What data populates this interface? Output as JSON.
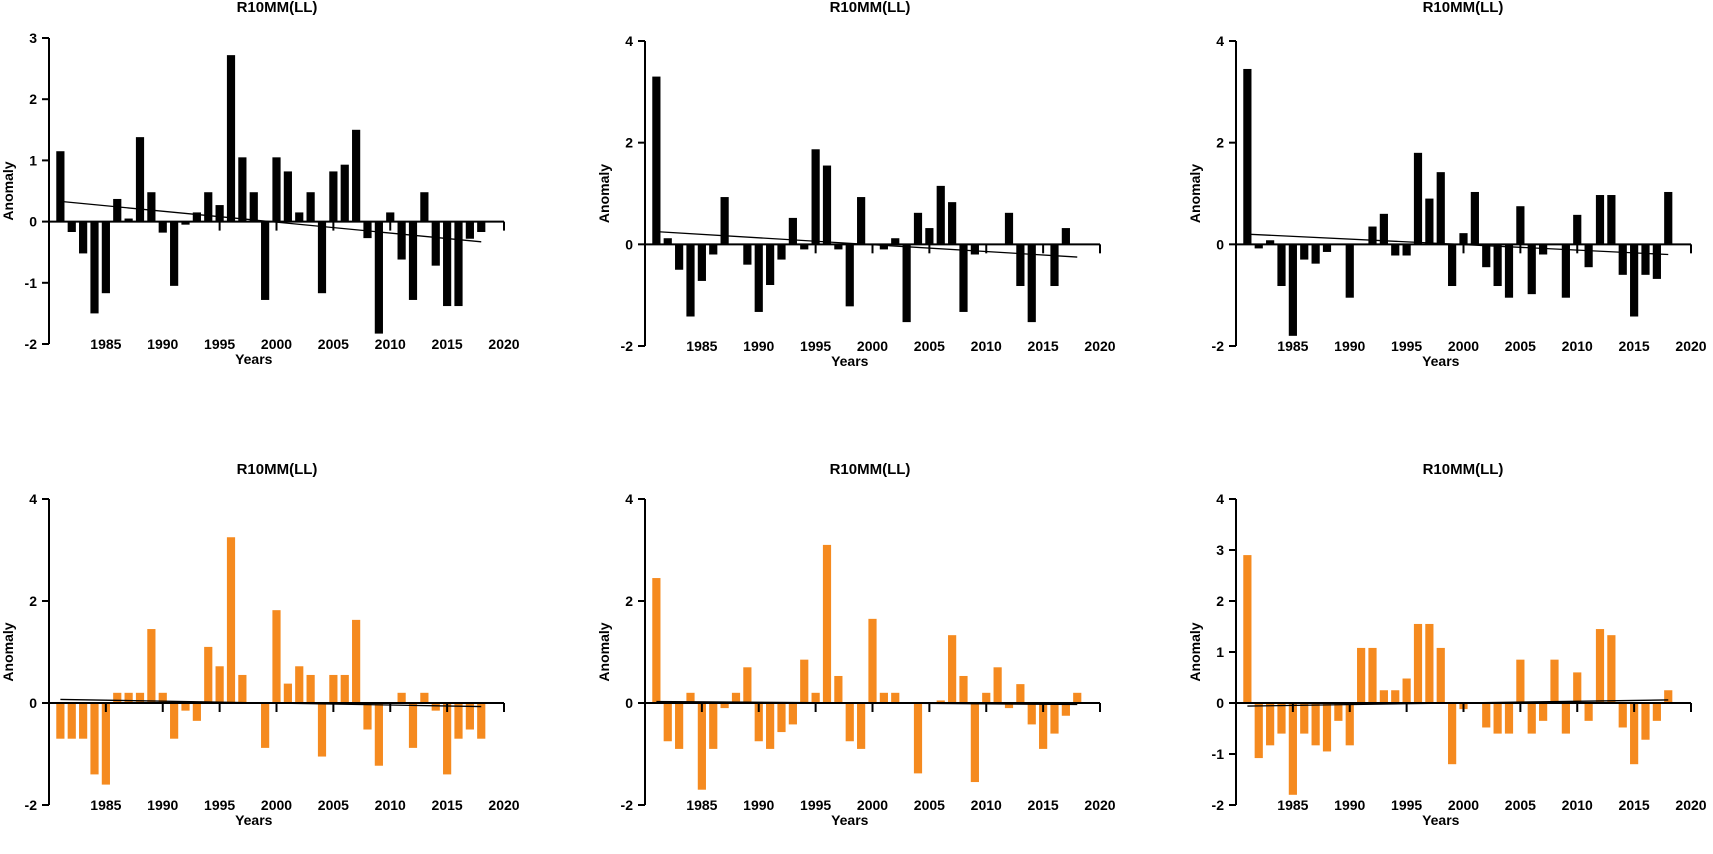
{
  "chart_data": [
    {
      "type": "bar",
      "title": "R10MM(LL)",
      "xlabel": "Years",
      "ylabel": "Anomaly",
      "color": "#000000",
      "ylim": [
        -2,
        3
      ],
      "yticks": [
        -2,
        -1,
        0,
        1,
        2,
        3
      ],
      "xlim": [
        1980,
        2020
      ],
      "xticks": [
        1985,
        1990,
        1995,
        2000,
        2005,
        2010,
        2015,
        2020
      ],
      "x": [
        1981,
        1982,
        1983,
        1984,
        1985,
        1986,
        1987,
        1988,
        1989,
        1990,
        1991,
        1992,
        1993,
        1994,
        1995,
        1996,
        1997,
        1998,
        1999,
        2000,
        2001,
        2002,
        2003,
        2004,
        2005,
        2006,
        2007,
        2008,
        2009,
        2010,
        2011,
        2012,
        2013,
        2014,
        2015,
        2016,
        2017,
        2018
      ],
      "values": [
        1.15,
        -0.17,
        -0.52,
        -1.5,
        -1.17,
        0.37,
        0.05,
        1.38,
        0.48,
        -0.18,
        -1.05,
        -0.05,
        0.15,
        0.48,
        0.27,
        2.72,
        1.05,
        0.48,
        -1.28,
        1.05,
        0.82,
        0.15,
        0.48,
        -1.17,
        0.82,
        0.93,
        1.5,
        -0.27,
        -1.83,
        0.15,
        -0.62,
        -1.28,
        0.48,
        -0.72,
        -1.38,
        -1.38,
        -0.28,
        -0.17
      ],
      "trend": {
        "x": [
          1981,
          2018
        ],
        "y": [
          0.33,
          -0.33
        ]
      }
    },
    {
      "type": "bar",
      "title": "R10MM(LL)",
      "xlabel": "Years",
      "ylabel": "Anomaly",
      "color": "#000000",
      "ylim": [
        -2,
        4
      ],
      "yticks": [
        -2,
        0,
        2,
        4
      ],
      "xlim": [
        1980,
        2020
      ],
      "xticks": [
        1985,
        1990,
        1995,
        2000,
        2005,
        2010,
        2015,
        2020
      ],
      "x": [
        1981,
        1982,
        1983,
        1984,
        1985,
        1986,
        1987,
        1988,
        1989,
        1990,
        1991,
        1992,
        1993,
        1994,
        1995,
        1996,
        1997,
        1998,
        1999,
        2000,
        2001,
        2002,
        2003,
        2004,
        2005,
        2006,
        2007,
        2008,
        2009,
        2010,
        2011,
        2012,
        2013,
        2014,
        2015,
        2016,
        2017,
        2018
      ],
      "values": [
        3.3,
        0.12,
        -0.5,
        -1.42,
        -0.72,
        -0.2,
        0.93,
        0.0,
        -0.4,
        -1.33,
        -0.8,
        -0.3,
        0.52,
        -0.1,
        1.87,
        1.55,
        -0.1,
        -1.22,
        0.93,
        0.0,
        -0.1,
        0.12,
        -1.53,
        0.62,
        0.32,
        1.15,
        0.83,
        -1.33,
        -0.2,
        0.0,
        0.0,
        0.62,
        -0.82,
        -1.53,
        0.0,
        -0.82,
        0.32,
        0.0
      ],
      "trend": {
        "x": [
          1981,
          2018
        ],
        "y": [
          0.25,
          -0.25
        ]
      }
    },
    {
      "type": "bar",
      "title": "R10MM(LL)",
      "xlabel": "Years",
      "ylabel": "Anomaly",
      "color": "#000000",
      "ylim": [
        -2,
        4
      ],
      "yticks": [
        -2,
        0,
        2,
        4
      ],
      "xlim": [
        1980,
        2020
      ],
      "xticks": [
        1985,
        1990,
        1995,
        2000,
        2005,
        2010,
        2015,
        2020
      ],
      "x": [
        1981,
        1982,
        1983,
        1984,
        1985,
        1986,
        1987,
        1988,
        1989,
        1990,
        1991,
        1992,
        1993,
        1994,
        1995,
        1996,
        1997,
        1998,
        1999,
        2000,
        2001,
        2002,
        2003,
        2004,
        2005,
        2006,
        2007,
        2008,
        2009,
        2010,
        2011,
        2012,
        2013,
        2014,
        2015,
        2016,
        2017,
        2018
      ],
      "values": [
        3.45,
        -0.08,
        0.08,
        -0.82,
        -1.8,
        -0.3,
        -0.38,
        -0.15,
        0.0,
        -1.05,
        0.0,
        0.35,
        0.6,
        -0.22,
        -0.22,
        1.8,
        0.9,
        1.42,
        -0.82,
        0.22,
        1.03,
        -0.45,
        -0.82,
        -1.05,
        0.75,
        -0.98,
        -0.2,
        0.0,
        -1.05,
        0.58,
        -0.45,
        0.97,
        0.97,
        -0.6,
        -1.42,
        -0.6,
        -0.68,
        1.03
      ],
      "trend": {
        "x": [
          1981,
          2018
        ],
        "y": [
          0.2,
          -0.2
        ]
      }
    },
    {
      "type": "bar",
      "title": "R10MM(LL)",
      "xlabel": "Years",
      "ylabel": "Anomaly",
      "color": "#F58A1F",
      "ylim": [
        -2,
        4
      ],
      "yticks": [
        -2,
        0,
        2,
        4
      ],
      "xlim": [
        1980,
        2020
      ],
      "xticks": [
        1985,
        1990,
        1995,
        2000,
        2005,
        2010,
        2015,
        2020
      ],
      "x": [
        1981,
        1982,
        1983,
        1984,
        1985,
        1986,
        1987,
        1988,
        1989,
        1990,
        1991,
        1992,
        1993,
        1994,
        1995,
        1996,
        1997,
        1998,
        1999,
        2000,
        2001,
        2002,
        2003,
        2004,
        2005,
        2006,
        2007,
        2008,
        2009,
        2010,
        2011,
        2012,
        2013,
        2014,
        2015,
        2016,
        2017,
        2018
      ],
      "values": [
        -0.7,
        -0.7,
        -0.7,
        -1.4,
        -1.6,
        0.2,
        0.2,
        0.2,
        1.45,
        0.2,
        -0.7,
        -0.15,
        -0.35,
        1.1,
        0.72,
        3.25,
        0.55,
        0.0,
        -0.88,
        1.82,
        0.38,
        0.72,
        0.55,
        -1.05,
        0.55,
        0.55,
        1.63,
        -0.52,
        -1.23,
        0.0,
        0.2,
        -0.88,
        0.2,
        -0.15,
        -1.4,
        -0.7,
        -0.52,
        -0.7
      ],
      "trend": {
        "x": [
          1981,
          2018
        ],
        "y": [
          0.07,
          -0.07
        ]
      }
    },
    {
      "type": "bar",
      "title": "R10MM(LL)",
      "xlabel": "Years",
      "ylabel": "Anomaly",
      "color": "#F58A1F",
      "ylim": [
        -2,
        4
      ],
      "yticks": [
        -2,
        0,
        2,
        4
      ],
      "xlim": [
        1980,
        2020
      ],
      "xticks": [
        1985,
        1990,
        1995,
        2000,
        2005,
        2010,
        2015,
        2020
      ],
      "x": [
        1981,
        1982,
        1983,
        1984,
        1985,
        1986,
        1987,
        1988,
        1989,
        1990,
        1991,
        1992,
        1993,
        1994,
        1995,
        1996,
        1997,
        1998,
        1999,
        2000,
        2001,
        2002,
        2003,
        2004,
        2005,
        2006,
        2007,
        2008,
        2009,
        2010,
        2011,
        2012,
        2013,
        2014,
        2015,
        2016,
        2017,
        2018
      ],
      "values": [
        2.45,
        -0.75,
        -0.9,
        0.2,
        -1.7,
        -0.9,
        -0.1,
        0.2,
        0.7,
        -0.75,
        -0.9,
        -0.57,
        -0.42,
        0.85,
        0.2,
        3.1,
        0.53,
        -0.75,
        -0.9,
        1.65,
        0.2,
        0.2,
        0.0,
        -1.38,
        0.0,
        0.05,
        1.33,
        0.53,
        -1.55,
        0.2,
        0.7,
        -0.1,
        0.37,
        -0.42,
        -0.9,
        -0.6,
        -0.25,
        0.2
      ],
      "trend": {
        "x": [
          1981,
          2018
        ],
        "y": [
          0.03,
          -0.03
        ]
      }
    },
    {
      "type": "bar",
      "title": "R10MM(LL)",
      "xlabel": "Years",
      "ylabel": "Anomaly",
      "color": "#F58A1F",
      "ylim": [
        -2,
        4
      ],
      "yticks": [
        -2,
        -1,
        0,
        1,
        2,
        3,
        4
      ],
      "xlim": [
        1980,
        2020
      ],
      "xticks": [
        1985,
        1990,
        1995,
        2000,
        2005,
        2010,
        2015,
        2020
      ],
      "x": [
        1981,
        1982,
        1983,
        1984,
        1985,
        1986,
        1987,
        1988,
        1989,
        1990,
        1991,
        1992,
        1993,
        1994,
        1995,
        1996,
        1997,
        1998,
        1999,
        2000,
        2001,
        2002,
        2003,
        2004,
        2005,
        2006,
        2007,
        2008,
        2009,
        2010,
        2011,
        2012,
        2013,
        2014,
        2015,
        2016,
        2017,
        2018
      ],
      "values": [
        2.9,
        -1.08,
        -0.83,
        -0.6,
        -1.8,
        -0.6,
        -0.83,
        -0.95,
        -0.35,
        -0.83,
        1.08,
        1.08,
        0.25,
        0.25,
        0.48,
        1.55,
        1.55,
        1.08,
        -1.2,
        -0.12,
        0.0,
        -0.48,
        -0.6,
        -0.6,
        0.85,
        -0.6,
        -0.35,
        0.85,
        -0.6,
        0.6,
        -0.35,
        1.45,
        1.33,
        -0.48,
        -1.2,
        -0.72,
        -0.35,
        0.25
      ],
      "trend": {
        "x": [
          1981,
          2018
        ],
        "y": [
          -0.06,
          0.06
        ]
      }
    }
  ]
}
